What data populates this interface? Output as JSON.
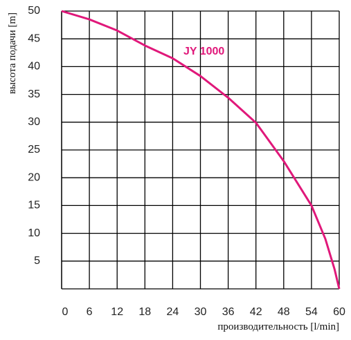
{
  "chart_data": {
    "type": "line",
    "x_label": "производительность  [l/min]",
    "y_label": "высота подачи  [m]",
    "x": [
      0,
      6,
      12,
      18,
      24,
      30,
      36,
      42,
      48,
      54,
      57,
      59,
      60
    ],
    "series": [
      {
        "name": "JY 1000",
        "color": "#e0187a",
        "values": [
          50,
          48.5,
          46.5,
          43.8,
          41.5,
          38.3,
          34.4,
          29.9,
          23,
          15,
          9,
          3.5,
          0
        ]
      }
    ],
    "xlim": [
      0,
      60
    ],
    "xticks": [
      0,
      6,
      12,
      18,
      24,
      30,
      36,
      42,
      48,
      54,
      60
    ],
    "ylim": [
      0,
      50
    ],
    "yticks": [
      5,
      10,
      15,
      20,
      25,
      30,
      35,
      40,
      45,
      50
    ],
    "grid": true
  }
}
